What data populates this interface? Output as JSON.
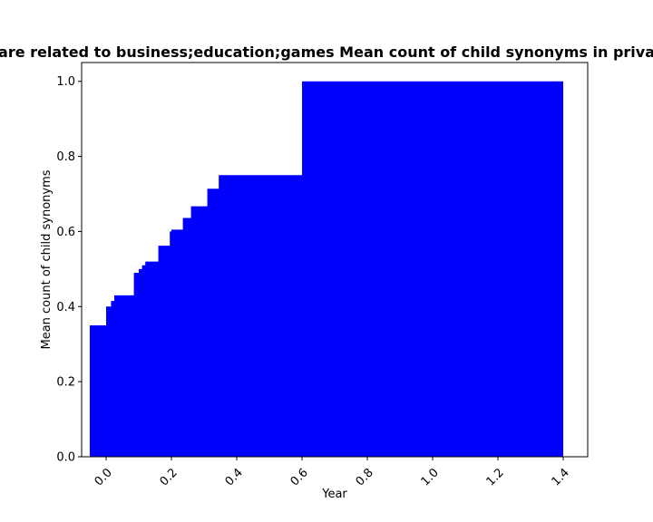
{
  "chart_data": {
    "type": "area",
    "title": "are related to business;education;games Mean count of child synonyms in priva",
    "xlabel": "Year",
    "ylabel": "Mean count of child synonyms",
    "xlim": [
      -0.075,
      1.475
    ],
    "ylim": [
      0.0,
      1.05
    ],
    "x_ticks": [
      "0.0",
      "0.2",
      "0.4",
      "0.6",
      "0.8",
      "1.0",
      "1.2",
      "1.4"
    ],
    "y_ticks": [
      "0.0",
      "0.2",
      "0.4",
      "0.6",
      "0.8",
      "1.0"
    ],
    "fill_color": "#0000ff",
    "series": [
      {
        "step": true,
        "points": [
          {
            "x": -0.05,
            "y": 0.35
          },
          {
            "x": 0.0,
            "y": 0.4
          },
          {
            "x": 0.015,
            "y": 0.415
          },
          {
            "x": 0.025,
            "y": 0.43
          },
          {
            "x": 0.085,
            "y": 0.49
          },
          {
            "x": 0.1,
            "y": 0.5
          },
          {
            "x": 0.11,
            "y": 0.51
          },
          {
            "x": 0.12,
            "y": 0.52
          },
          {
            "x": 0.16,
            "y": 0.562
          },
          {
            "x": 0.195,
            "y": 0.6
          },
          {
            "x": 0.2,
            "y": 0.605
          },
          {
            "x": 0.235,
            "y": 0.636
          },
          {
            "x": 0.26,
            "y": 0.667
          },
          {
            "x": 0.31,
            "y": 0.714
          },
          {
            "x": 0.345,
            "y": 0.75
          },
          {
            "x": 0.6,
            "y": 1.0
          },
          {
            "x": 1.4,
            "y": 1.0
          }
        ]
      }
    ]
  }
}
